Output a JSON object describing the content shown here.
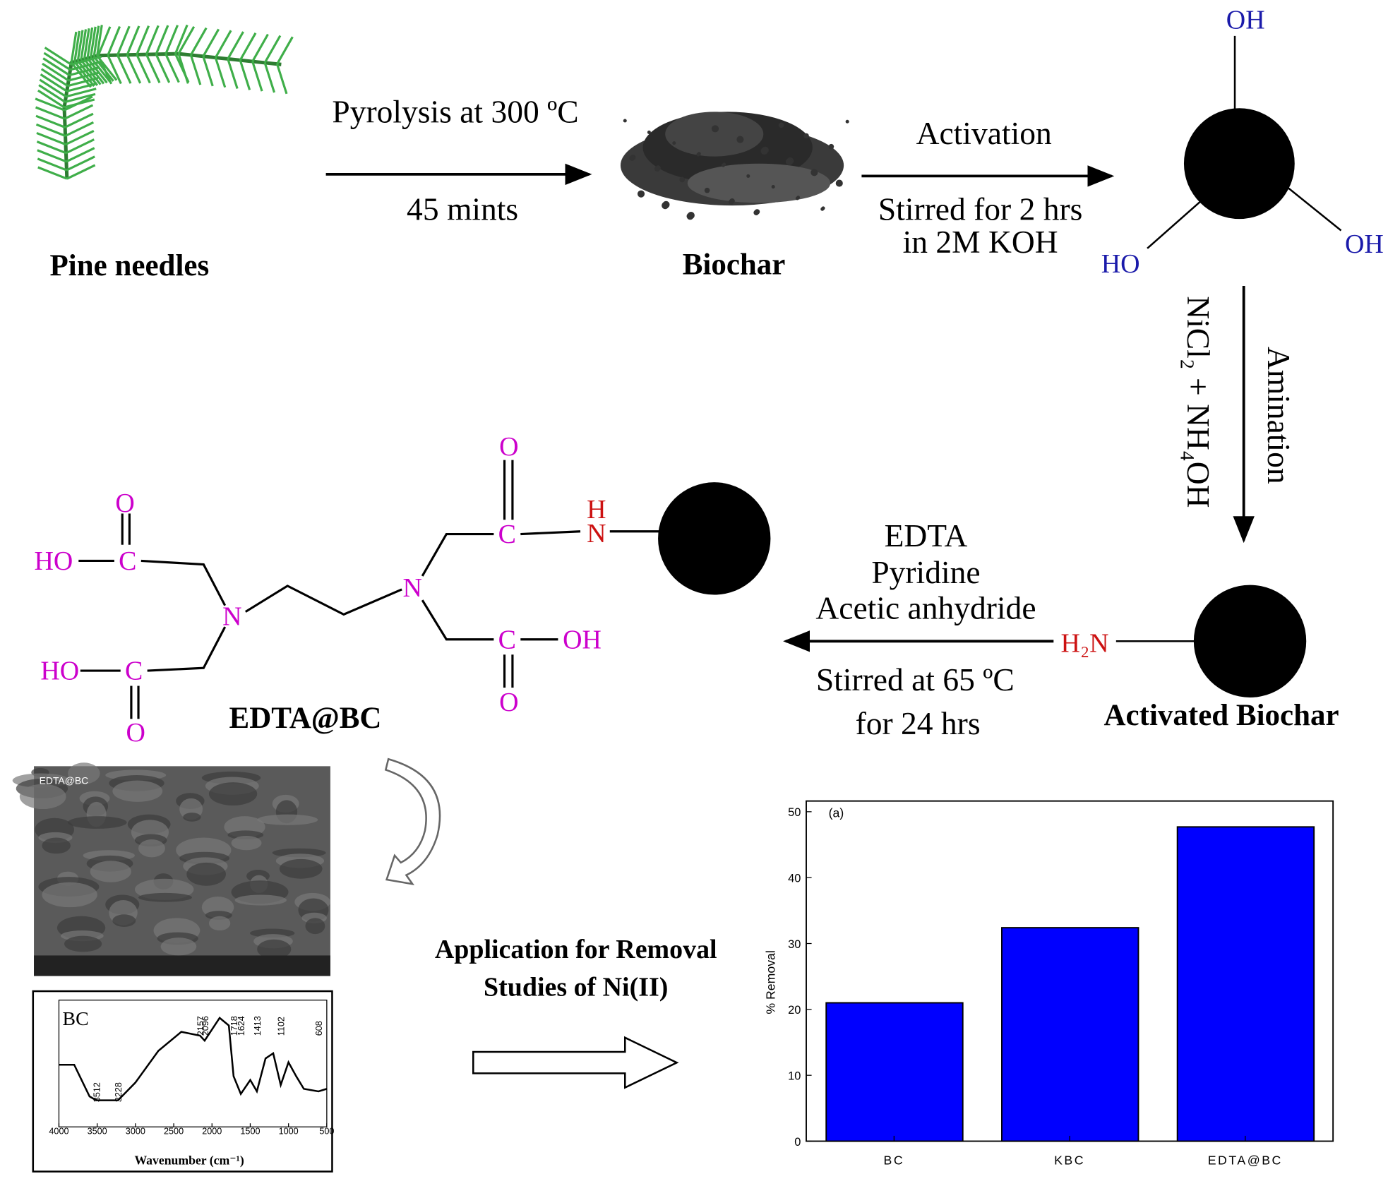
{
  "scheme": {
    "pine_needles": "Pine needles",
    "pyrolysis": {
      "condition": "Pyrolysis at 300 ºC",
      "time": "45 mints"
    },
    "biochar": "Biochar",
    "activation": {
      "label": "Activation",
      "condition": "Stirred for 2 hrs",
      "solution": "in 2M KOH"
    },
    "hydroxyl_groups": [
      "OH",
      "OH",
      "HO"
    ],
    "amination": {
      "label": "Amination",
      "reagents": "NiCl₂ + NH₄OH"
    },
    "amine_group": "H₂N",
    "activated_biochar": "Activated Biochar",
    "functionalization": {
      "reagents": [
        "EDTA",
        "Pyridine",
        "Acetic anhydride"
      ],
      "condition": "Stirred at 65 ºC",
      "time": "for 24 hrs"
    },
    "edta_structure": {
      "atoms": [
        "O",
        "HO",
        "C",
        "N",
        "HO",
        "C",
        "O",
        "N",
        "O",
        "C",
        "H",
        "N",
        "C",
        "OH",
        "O"
      ],
      "name": "EDTA@BC"
    },
    "sem_label": "EDTA@BC",
    "application": [
      "Application for Removal",
      "Studies of Ni(II)"
    ]
  },
  "chart_data": [
    {
      "type": "bar",
      "title": "(a)",
      "y_label": "% Removal",
      "categories": [
        "BC",
        "KBC",
        "EDTA@BC"
      ],
      "values": [
        21,
        32.4,
        47.7
      ],
      "color": "#0000ff",
      "ylim": [
        0,
        50
      ],
      "yticks": [
        0,
        10,
        20,
        30,
        40,
        50
      ]
    },
    {
      "type": "line",
      "title": "BC",
      "x_label": "Wavenumber (cm⁻¹)",
      "x": [
        4000,
        3800,
        3600,
        3512,
        3228,
        3000,
        2700,
        2400,
        2157,
        2096,
        1900,
        1780,
        1718,
        1624,
        1500,
        1413,
        1300,
        1200,
        1102,
        1000,
        900,
        800,
        608,
        500
      ],
      "series": [
        {
          "name": "BC",
          "color": "#000000",
          "values": [
            49,
            49,
            24,
            21,
            21,
            35,
            60,
            75,
            72,
            68,
            86,
            80,
            40,
            26,
            37,
            28,
            54,
            58,
            33,
            51,
            40,
            30,
            28,
            30
          ]
        }
      ],
      "xlim": [
        4000,
        500
      ],
      "ylim": [
        0,
        100
      ],
      "xticks": [
        4000,
        3500,
        3000,
        2500,
        2000,
        1500,
        1000,
        500
      ],
      "peaks": [
        3512,
        3228,
        2157,
        2096,
        1718,
        1624,
        1413,
        1102,
        608
      ]
    }
  ]
}
